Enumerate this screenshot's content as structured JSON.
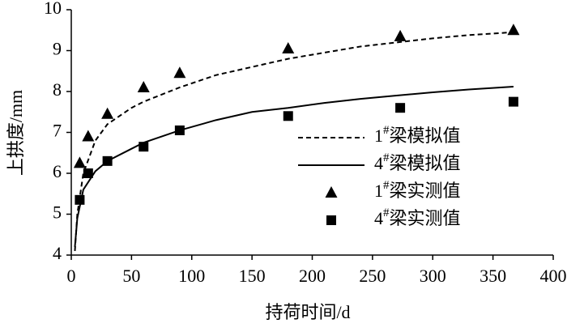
{
  "chart_data": {
    "type": "line",
    "xlabel": "持荷时间/d",
    "ylabel": "上拱度/mm",
    "xlim": [
      0,
      400
    ],
    "xticks": [
      0,
      50,
      100,
      150,
      200,
      250,
      300,
      350,
      400
    ],
    "ylim": [
      4,
      10
    ],
    "yticks": [
      4,
      5,
      6,
      7,
      8,
      9,
      10
    ],
    "grid": false,
    "legend": "right",
    "series": [
      {
        "name": "1#梁模拟值",
        "color": "#000000",
        "kind": "line",
        "style": "dashed",
        "x": [
          3,
          5,
          10,
          20,
          30,
          50,
          60,
          90,
          120,
          150,
          180,
          210,
          240,
          270,
          300,
          330,
          367
        ],
        "values": [
          4.1,
          5.0,
          6.0,
          6.8,
          7.2,
          7.6,
          7.75,
          8.1,
          8.4,
          8.6,
          8.8,
          8.95,
          9.1,
          9.2,
          9.3,
          9.38,
          9.45
        ]
      },
      {
        "name": "4#梁模拟值",
        "color": "#000000",
        "kind": "line",
        "style": "solid",
        "x": [
          3,
          5,
          10,
          20,
          30,
          50,
          60,
          90,
          120,
          150,
          180,
          210,
          240,
          270,
          300,
          330,
          367
        ],
        "values": [
          4.2,
          4.9,
          5.6,
          6.05,
          6.3,
          6.6,
          6.75,
          7.05,
          7.3,
          7.5,
          7.6,
          7.72,
          7.82,
          7.9,
          7.98,
          8.05,
          8.12
        ]
      },
      {
        "name": "1#梁实测值",
        "color": "#000000",
        "kind": "scatter",
        "marker": "triangle",
        "x": [
          7,
          14,
          30,
          60,
          90,
          180,
          273,
          367
        ],
        "values": [
          6.25,
          6.9,
          7.45,
          8.1,
          8.45,
          9.05,
          9.35,
          9.5
        ]
      },
      {
        "name": "4#梁实测值",
        "color": "#000000",
        "kind": "scatter",
        "marker": "square",
        "x": [
          7,
          14,
          30,
          60,
          90,
          180,
          273,
          367
        ],
        "values": [
          5.35,
          6.0,
          6.3,
          6.65,
          7.05,
          7.4,
          7.6,
          7.75
        ]
      }
    ]
  }
}
